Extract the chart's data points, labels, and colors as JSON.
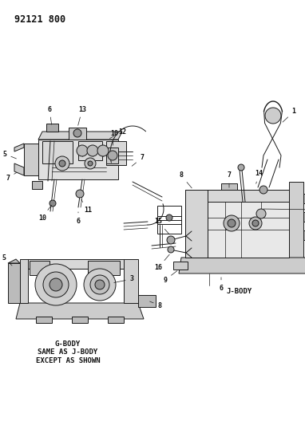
{
  "title": "92121 800",
  "bg": "#ffffff",
  "lc": "#1a1a1a",
  "tc": "#111111",
  "fs_title": 8.5,
  "fs_label": 6.5,
  "fs_body": 6.0,
  "figsize": [
    3.82,
    5.33
  ],
  "dpi": 100,
  "g_body_text": "G-BODY\nSAME AS J-BODY\nEXCEPT AS SHOWN",
  "j_body_text": "J-BODY"
}
